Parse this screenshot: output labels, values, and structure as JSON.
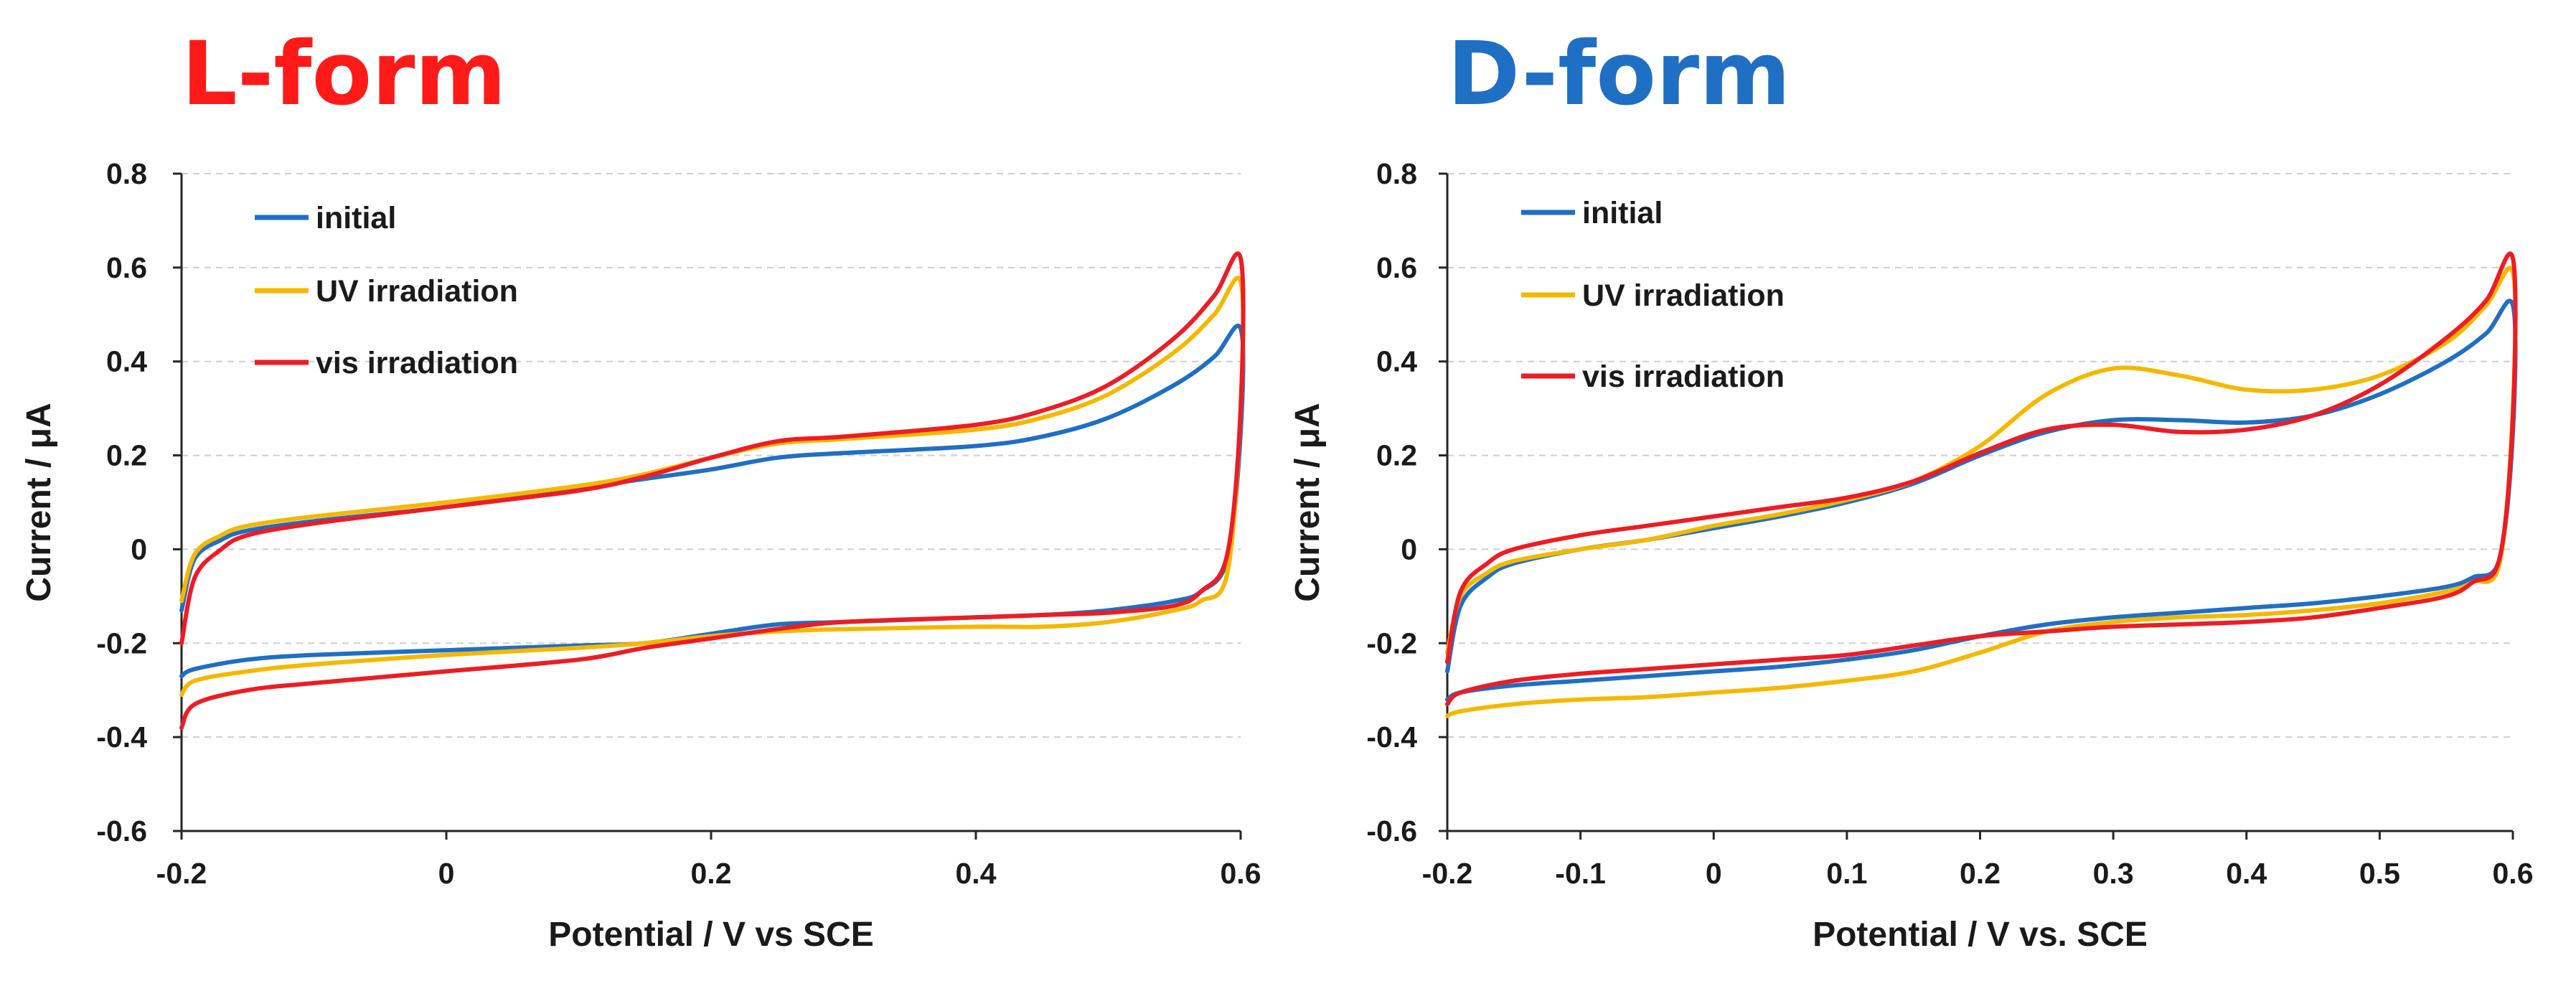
{
  "chart_data": [
    {
      "type": "line",
      "title": "L-form",
      "title_color": "#ff1a1a",
      "xlabel": "Potential / V vs SCE",
      "ylabel": "Current / μA",
      "xlim": [
        -0.2,
        0.6
      ],
      "ylim": [
        -0.6,
        0.8
      ],
      "xticks": [
        -0.2,
        0,
        0.2,
        0.4,
        0.6
      ],
      "xtick_labels": [
        "-0.2",
        "0",
        "0.2",
        "0.4",
        "0.6"
      ],
      "yticks": [
        -0.6,
        -0.4,
        -0.2,
        0,
        0.2,
        0.4,
        0.6,
        0.8
      ],
      "ytick_labels": [
        "-0.6",
        "-0.4",
        "-0.2",
        "0",
        "0.2",
        "0.4",
        "0.6",
        "0.8"
      ],
      "grid": true,
      "legend_position": "top-left",
      "series": [
        {
          "name": "initial",
          "color": "#1f6fc4",
          "x": [
            -0.2,
            -0.19,
            -0.17,
            -0.15,
            -0.1,
            0,
            0.1,
            0.15,
            0.2,
            0.25,
            0.3,
            0.4,
            0.45,
            0.5,
            0.55,
            0.58,
            0.6,
            0.6,
            0.59,
            0.57,
            0.55,
            0.5,
            0.45,
            0.4,
            0.3,
            0.25,
            0.2,
            0.15,
            0.1,
            0,
            -0.1,
            -0.15,
            -0.19,
            -0.2
          ],
          "y": [
            -0.13,
            -0.02,
            0.02,
            0.04,
            0.06,
            0.09,
            0.13,
            0.15,
            0.17,
            0.195,
            0.205,
            0.22,
            0.24,
            0.28,
            0.35,
            0.41,
            0.47,
            0.25,
            -0.02,
            -0.09,
            -0.11,
            -0.13,
            -0.14,
            -0.145,
            -0.155,
            -0.16,
            -0.18,
            -0.2,
            -0.205,
            -0.215,
            -0.225,
            -0.235,
            -0.255,
            -0.27
          ]
        },
        {
          "name": "UV irradiation",
          "color": "#f5b800",
          "x": [
            -0.2,
            -0.19,
            -0.17,
            -0.15,
            -0.1,
            0,
            0.1,
            0.15,
            0.2,
            0.25,
            0.3,
            0.4,
            0.45,
            0.5,
            0.55,
            0.58,
            0.6,
            0.6,
            0.59,
            0.57,
            0.55,
            0.5,
            0.45,
            0.4,
            0.3,
            0.25,
            0.2,
            0.15,
            0.1,
            0,
            -0.1,
            -0.15,
            -0.19,
            -0.2
          ],
          "y": [
            -0.11,
            -0.01,
            0.03,
            0.05,
            0.07,
            0.1,
            0.135,
            0.16,
            0.195,
            0.225,
            0.235,
            0.255,
            0.28,
            0.33,
            0.42,
            0.5,
            0.57,
            0.3,
            -0.05,
            -0.11,
            -0.13,
            -0.155,
            -0.165,
            -0.165,
            -0.17,
            -0.175,
            -0.185,
            -0.2,
            -0.21,
            -0.225,
            -0.245,
            -0.26,
            -0.28,
            -0.31
          ]
        },
        {
          "name": "vis irradiation",
          "color": "#ee1c24",
          "x": [
            -0.2,
            -0.19,
            -0.17,
            -0.15,
            -0.1,
            0,
            0.1,
            0.15,
            0.2,
            0.25,
            0.3,
            0.4,
            0.45,
            0.5,
            0.55,
            0.58,
            0.6,
            0.6,
            0.59,
            0.57,
            0.55,
            0.5,
            0.45,
            0.4,
            0.3,
            0.25,
            0.2,
            0.15,
            0.1,
            0,
            -0.1,
            -0.15,
            -0.19,
            -0.2
          ],
          "y": [
            -0.2,
            -0.06,
            0.0,
            0.03,
            0.055,
            0.09,
            0.125,
            0.155,
            0.195,
            0.23,
            0.24,
            0.265,
            0.295,
            0.35,
            0.45,
            0.54,
            0.62,
            0.3,
            -0.01,
            -0.09,
            -0.12,
            -0.135,
            -0.14,
            -0.145,
            -0.155,
            -0.17,
            -0.19,
            -0.21,
            -0.235,
            -0.26,
            -0.285,
            -0.3,
            -0.33,
            -0.38
          ]
        }
      ]
    },
    {
      "type": "line",
      "title": "D-form",
      "title_color": "#1f6fc4",
      "xlabel": "Potential / V vs. SCE",
      "ylabel": "Current / μA",
      "xlim": [
        -0.2,
        0.6
      ],
      "ylim": [
        -0.6,
        0.8
      ],
      "xticks": [
        -0.2,
        -0.1,
        0,
        0.1,
        0.2,
        0.3,
        0.4,
        0.5,
        0.6
      ],
      "xtick_labels": [
        "-0.2",
        "-0.1",
        "0",
        "0.1",
        "0.2",
        "0.3",
        "0.4",
        "0.5",
        "0.6"
      ],
      "yticks": [
        -0.6,
        -0.4,
        -0.2,
        0,
        0.2,
        0.4,
        0.6,
        0.8
      ],
      "ytick_labels": [
        "-0.6",
        "-0.4",
        "-0.2",
        "0",
        "0.2",
        "0.4",
        "0.6",
        "0.8"
      ],
      "grid": true,
      "legend_position": "top-left",
      "series": [
        {
          "name": "initial",
          "color": "#1f6fc4",
          "x": [
            -0.2,
            -0.19,
            -0.17,
            -0.15,
            -0.1,
            -0.05,
            0,
            0.05,
            0.1,
            0.15,
            0.2,
            0.25,
            0.3,
            0.35,
            0.4,
            0.45,
            0.5,
            0.55,
            0.58,
            0.6,
            0.6,
            0.59,
            0.57,
            0.55,
            0.5,
            0.45,
            0.4,
            0.35,
            0.3,
            0.25,
            0.2,
            0.15,
            0.1,
            0.05,
            0,
            -0.05,
            -0.1,
            -0.15,
            -0.19,
            -0.2
          ],
          "y": [
            -0.26,
            -0.12,
            -0.06,
            -0.03,
            0.0,
            0.02,
            0.045,
            0.07,
            0.1,
            0.14,
            0.2,
            0.25,
            0.275,
            0.275,
            0.27,
            0.285,
            0.33,
            0.4,
            0.46,
            0.52,
            0.25,
            -0.02,
            -0.06,
            -0.08,
            -0.1,
            -0.115,
            -0.125,
            -0.135,
            -0.145,
            -0.16,
            -0.185,
            -0.215,
            -0.235,
            -0.25,
            -0.26,
            -0.27,
            -0.28,
            -0.29,
            -0.305,
            -0.32
          ]
        },
        {
          "name": "UV irradiation",
          "color": "#f5b800",
          "x": [
            -0.2,
            -0.19,
            -0.17,
            -0.15,
            -0.1,
            -0.05,
            0,
            0.05,
            0.1,
            0.15,
            0.2,
            0.25,
            0.3,
            0.35,
            0.4,
            0.45,
            0.5,
            0.55,
            0.58,
            0.6,
            0.6,
            0.59,
            0.57,
            0.55,
            0.5,
            0.45,
            0.4,
            0.35,
            0.3,
            0.25,
            0.2,
            0.15,
            0.1,
            0.05,
            0,
            -0.05,
            -0.1,
            -0.15,
            -0.19,
            -0.2
          ],
          "y": [
            -0.22,
            -0.1,
            -0.05,
            -0.025,
            0.0,
            0.02,
            0.05,
            0.075,
            0.105,
            0.145,
            0.22,
            0.33,
            0.385,
            0.37,
            0.34,
            0.34,
            0.37,
            0.44,
            0.52,
            0.59,
            0.3,
            -0.03,
            -0.07,
            -0.09,
            -0.115,
            -0.13,
            -0.14,
            -0.145,
            -0.155,
            -0.175,
            -0.22,
            -0.26,
            -0.28,
            -0.295,
            -0.305,
            -0.315,
            -0.32,
            -0.33,
            -0.345,
            -0.355
          ]
        },
        {
          "name": "vis irradiation",
          "color": "#ee1c24",
          "x": [
            -0.2,
            -0.19,
            -0.17,
            -0.15,
            -0.1,
            -0.05,
            0,
            0.05,
            0.1,
            0.15,
            0.2,
            0.25,
            0.3,
            0.35,
            0.4,
            0.45,
            0.5,
            0.55,
            0.58,
            0.6,
            0.6,
            0.59,
            0.57,
            0.55,
            0.5,
            0.45,
            0.4,
            0.35,
            0.3,
            0.25,
            0.2,
            0.15,
            0.1,
            0.05,
            0,
            -0.05,
            -0.1,
            -0.15,
            -0.19,
            -0.2
          ],
          "y": [
            -0.24,
            -0.09,
            -0.03,
            0.0,
            0.03,
            0.05,
            0.07,
            0.09,
            0.11,
            0.145,
            0.205,
            0.255,
            0.265,
            0.25,
            0.255,
            0.285,
            0.35,
            0.45,
            0.53,
            0.62,
            0.28,
            -0.02,
            -0.07,
            -0.1,
            -0.125,
            -0.145,
            -0.155,
            -0.16,
            -0.165,
            -0.175,
            -0.185,
            -0.205,
            -0.225,
            -0.235,
            -0.245,
            -0.255,
            -0.265,
            -0.28,
            -0.305,
            -0.33
          ]
        }
      ]
    }
  ]
}
